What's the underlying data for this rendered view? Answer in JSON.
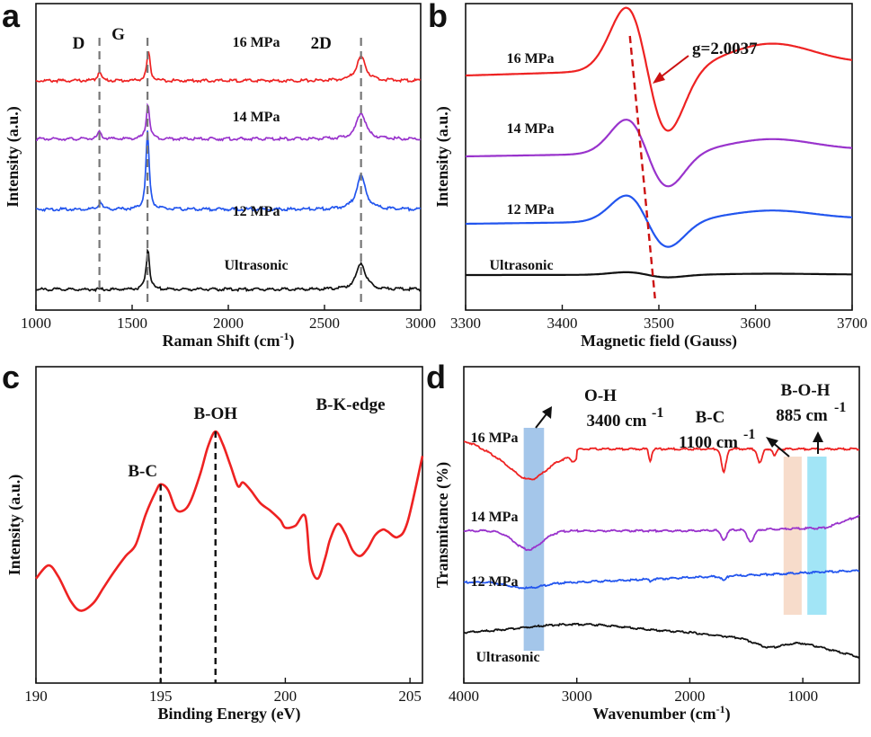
{
  "chart_data": [
    {
      "type": "line",
      "panel": "a",
      "xlabel": "Raman Shift (cm",
      "xlabel_sup": "-1",
      "xlabel_end": ")",
      "ylabel": "Intensity (a.u.)",
      "xlim": [
        1000,
        3000
      ],
      "xticks": [
        "1000",
        "1500",
        "2000",
        "2500",
        "3000"
      ],
      "bands": [
        {
          "label": "D",
          "x": 1330
        },
        {
          "label": "G",
          "x": 1580
        },
        {
          "label": "2D",
          "x": 2690
        }
      ],
      "series": [
        {
          "name": "16 MPa",
          "color": "#ee2222",
          "offset": 0.86,
          "peaks": [
            [
              1330,
              0.04
            ],
            [
              1585,
              0.12
            ],
            [
              2690,
              0.1
            ]
          ]
        },
        {
          "name": "14 MPa",
          "color": "#9933cc",
          "offset": 0.62,
          "peaks": [
            [
              1330,
              0.03
            ],
            [
              1582,
              0.15
            ],
            [
              2690,
              0.11
            ]
          ]
        },
        {
          "name": "12 MPa",
          "color": "#2255ee",
          "offset": 0.33,
          "peaks": [
            [
              1335,
              0.03
            ],
            [
              1580,
              0.32
            ],
            [
              2690,
              0.14
            ]
          ]
        },
        {
          "name": "Ultrasonic",
          "color": "#111111",
          "offset": 0.0,
          "peaks": [
            [
              1582,
              0.17
            ],
            [
              2690,
              0.11
            ]
          ]
        }
      ]
    },
    {
      "type": "line",
      "panel": "b",
      "xlabel": "Magnetic field (Gauss)",
      "ylabel": "Intensity (a.u.)",
      "xlim": [
        3300,
        3700
      ],
      "xticks": [
        "3300",
        "3400",
        "3500",
        "3600",
        "3700"
      ],
      "annotation": "g=2.0037",
      "marker_x": 3490,
      "series": [
        {
          "name": "16 MPa",
          "color": "#ee2222",
          "offset": 0.78,
          "amp": 0.24
        },
        {
          "name": "14 MPa",
          "color": "#9933cc",
          "offset": 0.48,
          "amp": 0.13
        },
        {
          "name": "12 MPa",
          "color": "#2255ee",
          "offset": 0.23,
          "amp": 0.1
        },
        {
          "name": "Ultrasonic",
          "color": "#111111",
          "offset": 0.04,
          "amp": 0.01
        }
      ]
    },
    {
      "type": "line",
      "panel": "c",
      "xlabel": "Binding Energy (eV)",
      "ylabel": "Intensity (a.u.)",
      "xlim": [
        190,
        205.5
      ],
      "xticks": [
        "190",
        "195",
        "200",
        "205"
      ],
      "title": "B-K-edge",
      "peaks": [
        {
          "label": "B-C",
          "x": 195.0
        },
        {
          "label": "B-OH",
          "x": 197.2
        }
      ],
      "series": [
        {
          "color": "#ee2222",
          "x": [
            190.0,
            190.5,
            190.9,
            191.4,
            191.8,
            192.3,
            192.7,
            193.1,
            193.6,
            194.0,
            194.4,
            194.8,
            195.0,
            195.3,
            195.6,
            195.9,
            196.2,
            196.6,
            196.9,
            197.2,
            197.5,
            197.8,
            198.1,
            198.3,
            198.6,
            199.0,
            199.4,
            199.8,
            200.0,
            200.4,
            200.8,
            201.0,
            201.3,
            201.6,
            201.8,
            202.1,
            202.4,
            202.7,
            203.0,
            203.3,
            203.6,
            203.9,
            204.1,
            204.5,
            204.9,
            205.5
          ],
          "y": [
            0.22,
            0.29,
            0.23,
            0.1,
            0.05,
            0.09,
            0.17,
            0.25,
            0.34,
            0.4,
            0.56,
            0.68,
            0.72,
            0.69,
            0.59,
            0.58,
            0.63,
            0.78,
            0.92,
            1.0,
            0.93,
            0.82,
            0.71,
            0.73,
            0.69,
            0.62,
            0.58,
            0.53,
            0.49,
            0.5,
            0.55,
            0.3,
            0.22,
            0.33,
            0.43,
            0.51,
            0.46,
            0.37,
            0.34,
            0.38,
            0.45,
            0.48,
            0.47,
            0.44,
            0.52,
            0.87
          ]
        }
      ]
    },
    {
      "type": "line",
      "panel": "d",
      "xlabel": "Wavenumber (cm",
      "xlabel_sup": "-1",
      "xlabel_end": ")",
      "ylabel": "Transmitance (%)",
      "xlim": [
        4000,
        500
      ],
      "xticks": [
        "4000",
        "3000",
        "2000",
        "1000"
      ],
      "bands": [
        {
          "label": "O-H",
          "sub": "3400 cm-1",
          "from": 3470,
          "to": 3290,
          "color": "#5a98d8"
        },
        {
          "label": "B-C",
          "sub": "1100 cm-1",
          "from": 1170,
          "to": 1010,
          "color": "#f1c0a0"
        },
        {
          "label": "B-O-H",
          "sub": "885 cm-1",
          "from": 960,
          "to": 790,
          "color": "#55d0ee"
        }
      ],
      "series": [
        {
          "name": "16 MPa",
          "color": "#ee2222",
          "offset": 0.76
        },
        {
          "name": "14 MPa",
          "color": "#9933cc",
          "offset": 0.44
        },
        {
          "name": "12 MPa",
          "color": "#2255ee",
          "offset": 0.22
        },
        {
          "name": "Ultrasonic",
          "color": "#111111",
          "offset": 0.0
        }
      ]
    }
  ]
}
